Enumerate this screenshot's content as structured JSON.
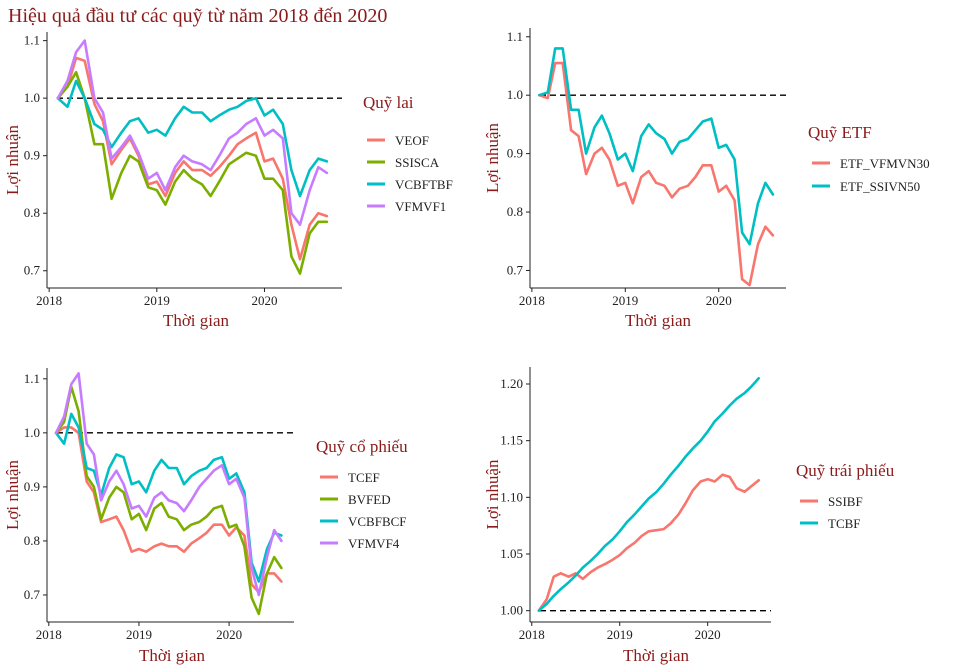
{
  "title": "Hiệu quả đầu tư các quỹ từ năm 2018 đến 2020",
  "chart_data": [
    {
      "type": "line",
      "legend_title": "Quỹ lai",
      "xlabel": "Thời gian",
      "ylabel": "Lợi nhuận",
      "xlim": [
        2017.98,
        2020.72
      ],
      "ylim": [
        0.67,
        1.115
      ],
      "x_ticks": [
        "2018",
        "2019",
        "2020"
      ],
      "y_ticks": [
        "0.7",
        "0.8",
        "0.9",
        "1.0",
        "1.1"
      ],
      "reference_line": 1.0,
      "legend_position": "right",
      "x": [
        2018.08,
        2018.17,
        2018.25,
        2018.33,
        2018.42,
        2018.5,
        2018.58,
        2018.67,
        2018.75,
        2018.83,
        2018.92,
        2019.0,
        2019.08,
        2019.17,
        2019.25,
        2019.33,
        2019.42,
        2019.5,
        2019.58,
        2019.67,
        2019.75,
        2019.83,
        2019.92,
        2020.0,
        2020.08,
        2020.17,
        2020.25,
        2020.33,
        2020.42,
        2020.5,
        2020.58
      ],
      "series": [
        {
          "name": "VEOF",
          "color": "#F8766D",
          "values": [
            1.0,
            1.02,
            1.07,
            1.065,
            0.99,
            0.96,
            0.885,
            0.91,
            0.93,
            0.9,
            0.85,
            0.855,
            0.83,
            0.87,
            0.89,
            0.875,
            0.875,
            0.865,
            0.88,
            0.9,
            0.92,
            0.93,
            0.94,
            0.89,
            0.895,
            0.86,
            0.78,
            0.72,
            0.78,
            0.8,
            0.795
          ]
        },
        {
          "name": "SSISCA",
          "color": "#7CAE00",
          "values": [
            1.0,
            1.02,
            1.045,
            1.0,
            0.92,
            0.92,
            0.825,
            0.87,
            0.9,
            0.89,
            0.845,
            0.84,
            0.815,
            0.855,
            0.875,
            0.86,
            0.85,
            0.83,
            0.855,
            0.885,
            0.895,
            0.905,
            0.9,
            0.86,
            0.86,
            0.84,
            0.725,
            0.695,
            0.765,
            0.785,
            0.785
          ]
        },
        {
          "name": "VCBFTBF",
          "color": "#00BFC4",
          "values": [
            1.0,
            0.985,
            1.03,
            1.0,
            0.955,
            0.945,
            0.915,
            0.94,
            0.96,
            0.965,
            0.94,
            0.945,
            0.935,
            0.965,
            0.985,
            0.975,
            0.975,
            0.96,
            0.97,
            0.98,
            0.985,
            0.995,
            1.0,
            0.97,
            0.98,
            0.955,
            0.875,
            0.83,
            0.875,
            0.895,
            0.89
          ]
        },
        {
          "name": "VFMVF1",
          "color": "#C77CFF",
          "values": [
            1.0,
            1.03,
            1.08,
            1.1,
            1.0,
            0.975,
            0.895,
            0.915,
            0.935,
            0.905,
            0.86,
            0.87,
            0.84,
            0.88,
            0.9,
            0.89,
            0.885,
            0.875,
            0.9,
            0.93,
            0.94,
            0.955,
            0.965,
            0.935,
            0.945,
            0.93,
            0.8,
            0.78,
            0.84,
            0.88,
            0.87
          ]
        }
      ]
    },
    {
      "type": "line",
      "legend_title": "Quỹ ETF",
      "xlabel": "Thời gian",
      "ylabel": "Lợi nhuận",
      "xlim": [
        2017.98,
        2020.72
      ],
      "ylim": [
        0.67,
        1.115
      ],
      "x_ticks": [
        "2018",
        "2019",
        "2020"
      ],
      "y_ticks": [
        "0.7",
        "0.8",
        "0.9",
        "1.0",
        "1.1"
      ],
      "reference_line": 1.0,
      "legend_position": "right",
      "x": [
        2018.08,
        2018.17,
        2018.25,
        2018.33,
        2018.42,
        2018.5,
        2018.58,
        2018.67,
        2018.75,
        2018.83,
        2018.92,
        2019.0,
        2019.08,
        2019.17,
        2019.25,
        2019.33,
        2019.42,
        2019.5,
        2019.58,
        2019.67,
        2019.75,
        2019.83,
        2019.92,
        2020.0,
        2020.08,
        2020.17,
        2020.25,
        2020.33,
        2020.42,
        2020.5,
        2020.58
      ],
      "series": [
        {
          "name": "ETF_VFMVN30",
          "color": "#F8766D",
          "values": [
            1.0,
            0.995,
            1.055,
            1.055,
            0.94,
            0.93,
            0.865,
            0.9,
            0.91,
            0.89,
            0.845,
            0.85,
            0.815,
            0.86,
            0.87,
            0.85,
            0.845,
            0.825,
            0.84,
            0.845,
            0.86,
            0.88,
            0.88,
            0.835,
            0.845,
            0.82,
            0.685,
            0.675,
            0.745,
            0.775,
            0.76
          ]
        },
        {
          "name": "ETF_SSIVN50",
          "color": "#00BFC4",
          "values": [
            1.0,
            1.005,
            1.08,
            1.08,
            0.975,
            0.975,
            0.9,
            0.945,
            0.965,
            0.935,
            0.89,
            0.9,
            0.87,
            0.93,
            0.95,
            0.935,
            0.925,
            0.9,
            0.92,
            0.925,
            0.94,
            0.955,
            0.96,
            0.91,
            0.915,
            0.89,
            0.765,
            0.745,
            0.815,
            0.85,
            0.83
          ]
        }
      ]
    },
    {
      "type": "line",
      "legend_title": "Quỹ cổ phiếu",
      "xlabel": "Thời gian",
      "ylabel": "Lợi nhuận",
      "xlim": [
        2017.98,
        2020.72
      ],
      "ylim": [
        0.65,
        1.12
      ],
      "x_ticks": [
        "2018",
        "2019",
        "2020"
      ],
      "y_ticks": [
        "0.7",
        "0.8",
        "0.9",
        "1.0",
        "1.1"
      ],
      "reference_line": 1.0,
      "legend_position": "right",
      "x": [
        2018.08,
        2018.17,
        2018.25,
        2018.33,
        2018.42,
        2018.5,
        2018.58,
        2018.67,
        2018.75,
        2018.83,
        2018.92,
        2019.0,
        2019.08,
        2019.17,
        2019.25,
        2019.33,
        2019.42,
        2019.5,
        2019.58,
        2019.67,
        2019.75,
        2019.83,
        2019.92,
        2020.0,
        2020.08,
        2020.17,
        2020.25,
        2020.33,
        2020.42,
        2020.5,
        2020.58
      ],
      "series": [
        {
          "name": "TCEF",
          "color": "#F8766D",
          "values": [
            1.0,
            1.01,
            1.01,
            1.0,
            0.91,
            0.89,
            0.835,
            0.84,
            0.845,
            0.82,
            0.78,
            0.785,
            0.78,
            0.79,
            0.795,
            0.79,
            0.79,
            0.78,
            0.795,
            0.805,
            0.815,
            0.83,
            0.83,
            0.81,
            0.825,
            0.81,
            0.72,
            0.705,
            0.74,
            0.74,
            0.725
          ]
        },
        {
          "name": "BVFED",
          "color": "#7CAE00",
          "values": [
            1.0,
            1.02,
            1.085,
            1.04,
            0.92,
            0.9,
            0.84,
            0.88,
            0.9,
            0.89,
            0.84,
            0.85,
            0.82,
            0.86,
            0.87,
            0.845,
            0.84,
            0.82,
            0.83,
            0.835,
            0.845,
            0.86,
            0.865,
            0.825,
            0.83,
            0.79,
            0.695,
            0.665,
            0.74,
            0.77,
            0.75
          ]
        },
        {
          "name": "VCBFBCF",
          "color": "#00BFC4",
          "values": [
            1.0,
            0.98,
            1.035,
            1.01,
            0.935,
            0.93,
            0.885,
            0.935,
            0.96,
            0.955,
            0.905,
            0.91,
            0.89,
            0.93,
            0.95,
            0.935,
            0.935,
            0.905,
            0.92,
            0.93,
            0.935,
            0.95,
            0.955,
            0.915,
            0.925,
            0.89,
            0.76,
            0.725,
            0.785,
            0.815,
            0.81
          ]
        },
        {
          "name": "VFMVF4",
          "color": "#C77CFF",
          "values": [
            1.0,
            1.03,
            1.09,
            1.11,
            0.98,
            0.96,
            0.875,
            0.91,
            0.93,
            0.905,
            0.86,
            0.865,
            0.845,
            0.88,
            0.89,
            0.875,
            0.87,
            0.855,
            0.875,
            0.9,
            0.915,
            0.93,
            0.94,
            0.905,
            0.915,
            0.88,
            0.75,
            0.7,
            0.77,
            0.82,
            0.8
          ]
        }
      ]
    },
    {
      "type": "line",
      "legend_title": "Quỹ trái phiếu",
      "xlabel": "Thời gian",
      "ylabel": "Lợi nhuận",
      "xlim": [
        2017.98,
        2020.72
      ],
      "ylim": [
        0.99,
        1.215
      ],
      "x_ticks": [
        "2018",
        "2019",
        "2020"
      ],
      "y_ticks": [
        "1.00",
        "1.05",
        "1.10",
        "1.15",
        "1.20"
      ],
      "reference_line": 1.0,
      "legend_position": "right",
      "x": [
        2018.08,
        2018.17,
        2018.25,
        2018.33,
        2018.42,
        2018.5,
        2018.58,
        2018.67,
        2018.75,
        2018.83,
        2018.92,
        2019.0,
        2019.08,
        2019.17,
        2019.25,
        2019.33,
        2019.42,
        2019.5,
        2019.58,
        2019.67,
        2019.75,
        2019.83,
        2019.92,
        2020.0,
        2020.08,
        2020.17,
        2020.25,
        2020.33,
        2020.42,
        2020.5,
        2020.58
      ],
      "series": [
        {
          "name": "SSIBF",
          "color": "#F8766D",
          "values": [
            1.0,
            1.01,
            1.03,
            1.033,
            1.03,
            1.033,
            1.028,
            1.034,
            1.038,
            1.041,
            1.045,
            1.049,
            1.055,
            1.06,
            1.066,
            1.07,
            1.071,
            1.072,
            1.077,
            1.085,
            1.095,
            1.106,
            1.114,
            1.116,
            1.114,
            1.12,
            1.118,
            1.108,
            1.105,
            1.11,
            1.115
          ]
        },
        {
          "name": "TCBF",
          "color": "#00BFC4",
          "values": [
            1.0,
            1.006,
            1.013,
            1.019,
            1.025,
            1.031,
            1.038,
            1.044,
            1.05,
            1.057,
            1.063,
            1.07,
            1.078,
            1.085,
            1.092,
            1.099,
            1.105,
            1.112,
            1.12,
            1.128,
            1.136,
            1.143,
            1.15,
            1.158,
            1.167,
            1.174,
            1.181,
            1.187,
            1.192,
            1.198,
            1.205
          ]
        }
      ]
    }
  ]
}
